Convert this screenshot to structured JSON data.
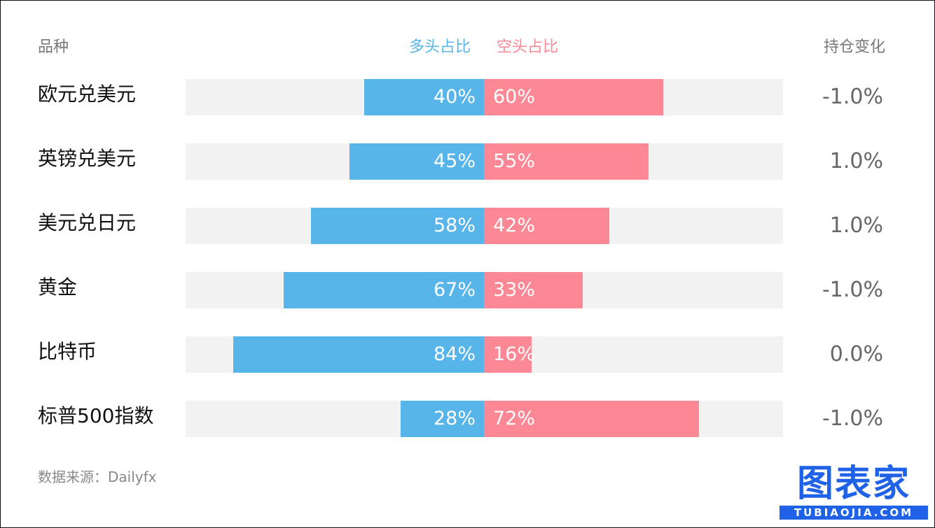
{
  "header": {
    "category": "品种",
    "long": "多头占比",
    "short": "空头占比",
    "change": "持仓变化"
  },
  "chart_data": {
    "type": "bar",
    "subtype": "diverging-stacked",
    "categories": [
      "欧元兑美元",
      "英镑兑美元",
      "美元兑日元",
      "黄金",
      "比特币",
      "标普500指数"
    ],
    "series": [
      {
        "name": "多头占比",
        "values": [
          40,
          45,
          58,
          67,
          84,
          28
        ],
        "labels": [
          "40%",
          "45%",
          "58%",
          "67%",
          "84%",
          "28%"
        ]
      },
      {
        "name": "空头占比",
        "values": [
          60,
          55,
          42,
          33,
          16,
          72
        ],
        "labels": [
          "60%",
          "55%",
          "42%",
          "33%",
          "16%",
          "72%"
        ]
      }
    ],
    "position_change": [
      "-1.0%",
      "1.0%",
      "1.0%",
      "-1.0%",
      "0.0%",
      "-1.0%"
    ],
    "value_unit": "%",
    "xlim": [
      -100,
      100
    ]
  },
  "colors": {
    "long": "#57b5e9",
    "short": "#fc8795",
    "track": "#f2f2f2",
    "logo": "#1f62e8"
  },
  "footer": {
    "source": "数据来源：Dailyfx"
  },
  "logo": {
    "name": "图表家",
    "url_text": "TUBIAOJIA.COM"
  }
}
